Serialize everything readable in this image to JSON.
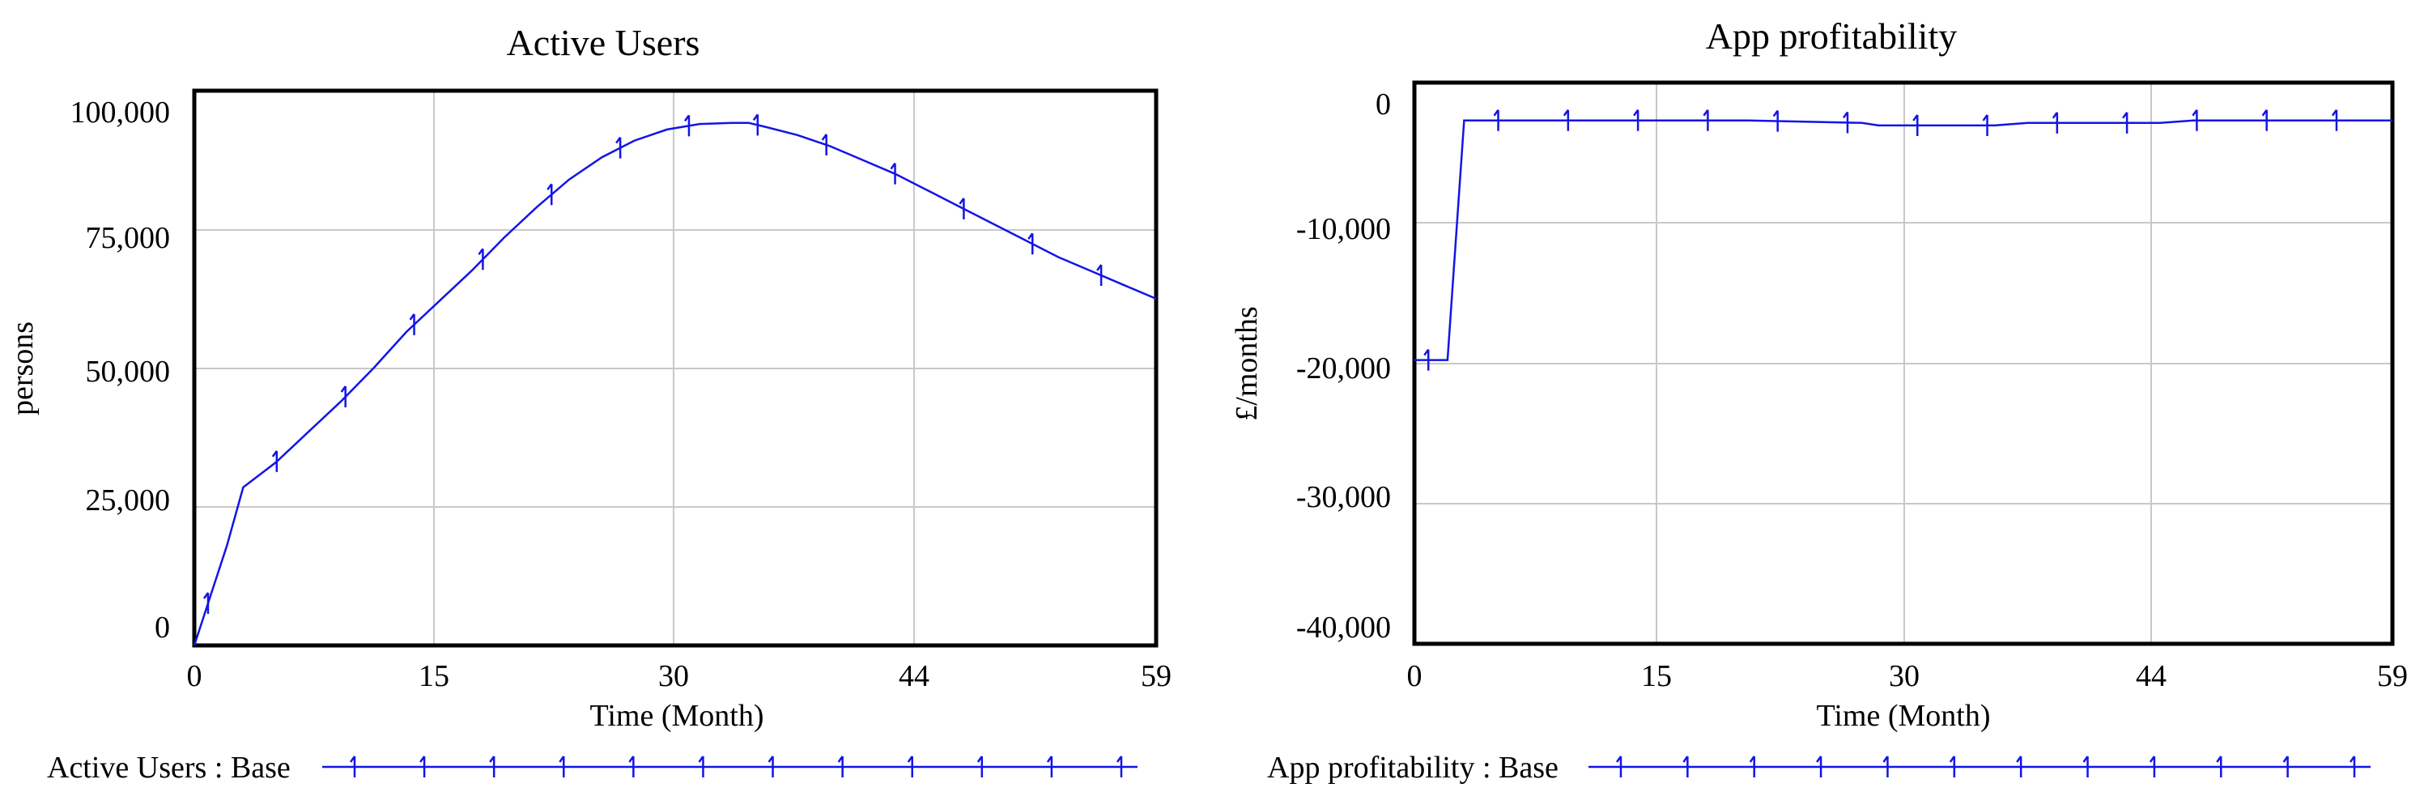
{
  "chart_data": [
    {
      "type": "line",
      "title": "Active Users",
      "xlabel": "Time (Month)",
      "ylabel": "persons",
      "xlim": [
        0,
        59
      ],
      "ylim": [
        0,
        100000
      ],
      "x_ticks": [
        0,
        15,
        30,
        44,
        59
      ],
      "x_tick_labels": [
        "0",
        "15",
        "30",
        "44",
        "59"
      ],
      "y_ticks": [
        0,
        25000,
        50000,
        75000,
        100000
      ],
      "y_tick_labels": [
        "0",
        "25,000",
        "50,000",
        "75,000",
        "100,000"
      ],
      "grid": true,
      "legend": "bottom",
      "series": [
        {
          "name": "Active Users : Base",
          "color": "#1414e6",
          "x": [
            0,
            1,
            2,
            3,
            5,
            7,
            9,
            11,
            13,
            15,
            17,
            19,
            21,
            23,
            25,
            27,
            29,
            31,
            33,
            34,
            35,
            37,
            39,
            41,
            43,
            45,
            47,
            49,
            51,
            53,
            55,
            57,
            59
          ],
          "y": [
            0,
            9000,
            18000,
            28500,
            33000,
            38500,
            44000,
            50000,
            56500,
            62000,
            67500,
            73500,
            79000,
            84000,
            88000,
            91000,
            93000,
            94000,
            94200,
            94200,
            93500,
            92000,
            90000,
            87500,
            85000,
            82000,
            79000,
            76000,
            73000,
            70000,
            67500,
            65000,
            62500
          ]
        }
      ]
    },
    {
      "type": "line",
      "title": "App profitability",
      "xlabel": "Time (Month)",
      "ylabel": "£/months",
      "xlim": [
        0,
        59
      ],
      "ylim": [
        -43000,
        1500
      ],
      "x_ticks": [
        0,
        15,
        30,
        44,
        59
      ],
      "x_tick_labels": [
        "0",
        "15",
        "30",
        "44",
        "59"
      ],
      "y_ticks": [
        0,
        -10000,
        -20000,
        -30000,
        -40000
      ],
      "y_tick_labels": [
        "0",
        "-10,000",
        "-20,000",
        "-30,000",
        "-40,000"
      ],
      "grid": true,
      "legend": "bottom",
      "series": [
        {
          "name": "App profitability : Base",
          "color": "#1414e6",
          "x": [
            0,
            2,
            3,
            10,
            20,
            27,
            28,
            29,
            35,
            37,
            40,
            45,
            47,
            50,
            59
          ],
          "y": [
            -20500,
            -20500,
            -1500,
            -1500,
            -1500,
            -1700,
            -1900,
            -1900,
            -1900,
            -1700,
            -1700,
            -1700,
            -1500,
            -1500,
            -1500
          ]
        }
      ]
    }
  ]
}
